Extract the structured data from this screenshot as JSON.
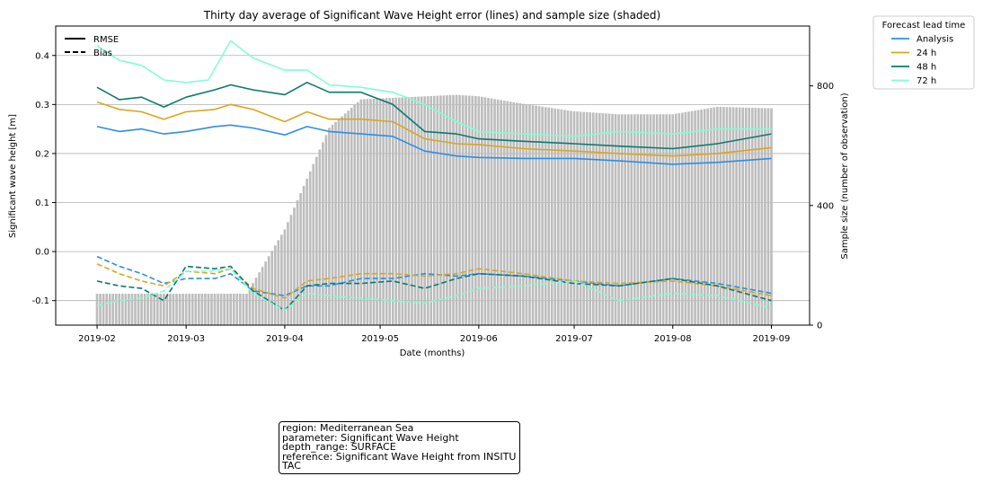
{
  "chart_data": {
    "type": "line",
    "title": "Thirty day average of Significant Wave Height error (lines) and sample size (shaded)",
    "xlabel": "Date (months)",
    "ylabel": "Significant wave height [m]",
    "y2label": "Sample size (number of observation)",
    "ylim": [
      -0.15,
      0.46
    ],
    "y2lim": [
      0,
      1000
    ],
    "xlim": [
      "2019-01-19",
      "2019-09-13"
    ],
    "x_ticks": [
      "2019-02",
      "2019-03",
      "2019-04",
      "2019-05",
      "2019-06",
      "2019-07",
      "2019-08",
      "2019-09"
    ],
    "y_ticks": [
      -0.1,
      0.0,
      0.1,
      0.2,
      0.3,
      0.4
    ],
    "y2_ticks": [
      0,
      400,
      800
    ],
    "grid": "horizontal",
    "style_legend": {
      "placement": "top-left",
      "entries": [
        {
          "label": "RMSE",
          "dash": "solid"
        },
        {
          "label": "Bias",
          "dash": "dashed"
        }
      ]
    },
    "legend": {
      "title": "Forecast lead time",
      "placement": "outside-top-right",
      "entries": [
        "Analysis",
        "24 h",
        "48 h",
        "72 h"
      ]
    },
    "sample_size": {
      "color": "#bdbdbd",
      "x": [
        "2019-02-01",
        "2019-03-20",
        "2019-04-01",
        "2019-04-15",
        "2019-04-25",
        "2019-05-15",
        "2019-05-25",
        "2019-06-01",
        "2019-06-15",
        "2019-07-01",
        "2019-07-15",
        "2019-08-01",
        "2019-08-15",
        "2019-09-01"
      ],
      "values": [
        105,
        105,
        320,
        660,
        755,
        765,
        770,
        765,
        740,
        715,
        705,
        705,
        730,
        725
      ]
    },
    "series": [
      {
        "name": "Analysis",
        "color": "#2a8ee8",
        "x": [
          "2019-02-01",
          "2019-02-08",
          "2019-02-15",
          "2019-02-22",
          "2019-03-01",
          "2019-03-10",
          "2019-03-15",
          "2019-03-22",
          "2019-04-01",
          "2019-04-08",
          "2019-04-15",
          "2019-04-25",
          "2019-05-05",
          "2019-05-15",
          "2019-05-25",
          "2019-06-01",
          "2019-06-15",
          "2019-07-01",
          "2019-07-15",
          "2019-08-01",
          "2019-08-15",
          "2019-09-01"
        ],
        "rmse": [
          0.255,
          0.245,
          0.25,
          0.24,
          0.245,
          0.255,
          0.258,
          0.252,
          0.238,
          0.255,
          0.245,
          0.24,
          0.235,
          0.205,
          0.195,
          0.192,
          0.19,
          0.19,
          0.185,
          0.178,
          0.182,
          0.19
        ],
        "bias": [
          -0.01,
          -0.03,
          -0.045,
          -0.065,
          -0.055,
          -0.055,
          -0.045,
          -0.08,
          -0.09,
          -0.07,
          -0.07,
          -0.055,
          -0.055,
          -0.045,
          -0.05,
          -0.045,
          -0.05,
          -0.06,
          -0.07,
          -0.055,
          -0.065,
          -0.085
        ]
      },
      {
        "name": "24 h",
        "color": "#daa520",
        "x": [
          "2019-02-01",
          "2019-02-08",
          "2019-02-15",
          "2019-02-22",
          "2019-03-01",
          "2019-03-10",
          "2019-03-15",
          "2019-03-22",
          "2019-04-01",
          "2019-04-08",
          "2019-04-15",
          "2019-04-25",
          "2019-05-05",
          "2019-05-15",
          "2019-05-25",
          "2019-06-01",
          "2019-06-15",
          "2019-07-01",
          "2019-07-15",
          "2019-08-01",
          "2019-08-15",
          "2019-09-01"
        ],
        "rmse": [
          0.305,
          0.29,
          0.285,
          0.27,
          0.285,
          0.29,
          0.3,
          0.29,
          0.265,
          0.285,
          0.27,
          0.27,
          0.265,
          0.23,
          0.22,
          0.218,
          0.21,
          0.205,
          0.2,
          0.195,
          0.2,
          0.212
        ],
        "bias": [
          -0.025,
          -0.045,
          -0.06,
          -0.07,
          -0.04,
          -0.045,
          -0.035,
          -0.075,
          -0.095,
          -0.06,
          -0.055,
          -0.045,
          -0.045,
          -0.05,
          -0.045,
          -0.035,
          -0.045,
          -0.06,
          -0.065,
          -0.06,
          -0.07,
          -0.09
        ]
      },
      {
        "name": "48 h",
        "color": "#097a6e",
        "x": [
          "2019-02-01",
          "2019-02-08",
          "2019-02-15",
          "2019-02-22",
          "2019-03-01",
          "2019-03-10",
          "2019-03-15",
          "2019-03-22",
          "2019-04-01",
          "2019-04-08",
          "2019-04-15",
          "2019-04-25",
          "2019-05-05",
          "2019-05-15",
          "2019-05-25",
          "2019-06-01",
          "2019-06-15",
          "2019-07-01",
          "2019-07-15",
          "2019-08-01",
          "2019-08-15",
          "2019-09-01"
        ],
        "rmse": [
          0.335,
          0.31,
          0.315,
          0.295,
          0.315,
          0.33,
          0.34,
          0.33,
          0.32,
          0.345,
          0.325,
          0.325,
          0.3,
          0.245,
          0.24,
          0.23,
          0.225,
          0.22,
          0.215,
          0.21,
          0.22,
          0.24
        ],
        "bias": [
          -0.06,
          -0.07,
          -0.075,
          -0.1,
          -0.03,
          -0.035,
          -0.03,
          -0.08,
          -0.12,
          -0.07,
          -0.065,
          -0.065,
          -0.06,
          -0.075,
          -0.055,
          -0.045,
          -0.05,
          -0.065,
          -0.07,
          -0.055,
          -0.07,
          -0.1
        ]
      },
      {
        "name": "72 h",
        "color": "#7fffd4",
        "x": [
          "2019-02-01",
          "2019-02-08",
          "2019-02-15",
          "2019-02-22",
          "2019-03-01",
          "2019-03-08",
          "2019-03-15",
          "2019-03-22",
          "2019-04-01",
          "2019-04-08",
          "2019-04-15",
          "2019-04-25",
          "2019-05-05",
          "2019-05-15",
          "2019-05-25",
          "2019-06-01",
          "2019-06-15",
          "2019-07-01",
          "2019-07-15",
          "2019-08-01",
          "2019-08-15",
          "2019-09-01"
        ],
        "rmse": [
          0.42,
          0.39,
          0.38,
          0.35,
          0.345,
          0.35,
          0.43,
          0.395,
          0.37,
          0.37,
          0.34,
          0.335,
          0.325,
          0.3,
          0.265,
          0.245,
          0.24,
          0.235,
          0.245,
          0.24,
          0.25,
          0.25
        ],
        "bias": [
          -0.11,
          -0.1,
          -0.095,
          -0.08,
          -0.04,
          -0.04,
          -0.035,
          -0.085,
          -0.12,
          -0.085,
          -0.09,
          -0.095,
          -0.1,
          -0.105,
          -0.09,
          -0.075,
          -0.07,
          -0.06,
          -0.1,
          -0.085,
          -0.09,
          -0.115
        ]
      }
    ]
  },
  "info_box": {
    "lines": [
      "region: Mediterranean Sea",
      "parameter: Significant Wave Height",
      "depth_range: SURFACE",
      "reference: Significant Wave Height from INSITU",
      "TAC"
    ]
  }
}
